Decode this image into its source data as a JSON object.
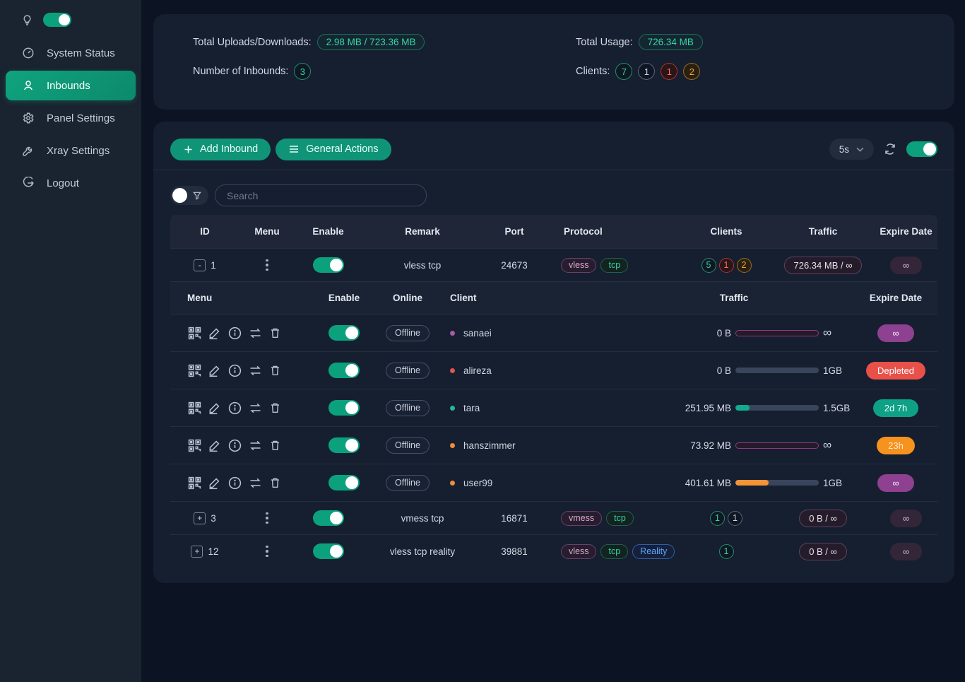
{
  "colors": {
    "accent": "#0ca17d",
    "card": "#161f30",
    "page": "#0c1322",
    "badge_purple": "#8e4190",
    "badge_red": "#e8504a",
    "badge_teal": "#0ea186",
    "badge_orange": "#f6921e"
  },
  "sidebar": {
    "theme_toggle_on": true,
    "items": [
      {
        "label": "System Status",
        "icon": "dashboard-icon",
        "active": false
      },
      {
        "label": "Inbounds",
        "icon": "user-icon",
        "active": true
      },
      {
        "label": "Panel Settings",
        "icon": "gear-icon",
        "active": false
      },
      {
        "label": "Xray Settings",
        "icon": "wrench-icon",
        "active": false
      },
      {
        "label": "Logout",
        "icon": "logout-icon",
        "active": false
      }
    ]
  },
  "stats": {
    "uploads_label": "Total Uploads/Downloads:",
    "uploads_value": "2.98 MB / 723.36 MB",
    "inbounds_label": "Number of Inbounds:",
    "inbounds_value": "3",
    "usage_label": "Total Usage:",
    "usage_value": "726.34 MB",
    "clients_label": "Clients:",
    "client_badges": [
      {
        "value": "7",
        "color": "green"
      },
      {
        "value": "1",
        "color": "gray"
      },
      {
        "value": "1",
        "color": "red"
      },
      {
        "value": "2",
        "color": "orange"
      }
    ]
  },
  "toolbar": {
    "add_inbound_label": "Add Inbound",
    "general_actions_label": "General Actions",
    "refresh_interval": "5s",
    "auto_refresh_on": true
  },
  "filters": {
    "search_placeholder": "Search",
    "toggle_on": false
  },
  "inbounds_table": {
    "headers": {
      "id": "ID",
      "menu": "Menu",
      "enable": "Enable",
      "remark": "Remark",
      "port": "Port",
      "protocol": "Protocol",
      "clients": "Clients",
      "traffic": "Traffic",
      "expire": "Expire Date"
    },
    "rows": [
      {
        "id": "1",
        "expand": "-",
        "enabled": true,
        "remark": "vless tcp",
        "port": "24673",
        "tags": [
          {
            "label": "vless",
            "color": "purple"
          },
          {
            "label": "tcp",
            "color": "green"
          }
        ],
        "client_badges": [
          {
            "value": "5",
            "color": "green"
          },
          {
            "value": "1",
            "color": "red"
          },
          {
            "value": "2",
            "color": "orange"
          }
        ],
        "traffic": "726.34 MB / ∞",
        "expire": "∞"
      },
      {
        "id": "3",
        "expand": "+",
        "enabled": true,
        "remark": "vmess tcp",
        "port": "16871",
        "tags": [
          {
            "label": "vmess",
            "color": "purple"
          },
          {
            "label": "tcp",
            "color": "green"
          }
        ],
        "client_badges": [
          {
            "value": "1",
            "color": "green"
          },
          {
            "value": "1",
            "color": "gray"
          }
        ],
        "traffic": "0 B / ∞",
        "expire": "∞"
      },
      {
        "id": "12",
        "expand": "+",
        "enabled": true,
        "remark": "vless tcp reality",
        "port": "39881",
        "tags": [
          {
            "label": "vless",
            "color": "purple"
          },
          {
            "label": "tcp",
            "color": "green"
          },
          {
            "label": "Reality",
            "color": "blue"
          }
        ],
        "client_badges": [
          {
            "value": "1",
            "color": "green"
          }
        ],
        "traffic": "0 B / ∞",
        "expire": "∞"
      }
    ]
  },
  "clients_table": {
    "headers": {
      "menu": "Menu",
      "enable": "Enable",
      "online": "Online",
      "client": "Client",
      "traffic": "Traffic",
      "expire": "Expire Date"
    },
    "action_icons": [
      "qr-code-icon",
      "edit-icon",
      "info-icon",
      "reset-traffic-icon",
      "delete-icon"
    ],
    "rows": [
      {
        "name": "sanaei",
        "dot_color": "purple",
        "status": "Offline",
        "enabled": true,
        "used": "0 B",
        "limit": "∞",
        "bar_type": "infinite",
        "pct": 0,
        "fill": "",
        "expire": "∞",
        "expire_color": "purple"
      },
      {
        "name": "alireza",
        "dot_color": "red",
        "status": "Offline",
        "enabled": true,
        "used": "0 B",
        "limit": "1GB",
        "bar_type": "normal",
        "pct": 0,
        "fill": "teal",
        "expire": "Depleted",
        "expire_color": "red"
      },
      {
        "name": "tara",
        "dot_color": "teal",
        "status": "Offline",
        "enabled": true,
        "used": "251.95 MB",
        "limit": "1.5GB",
        "bar_type": "normal",
        "pct": 17,
        "fill": "teal",
        "expire": "2d 7h",
        "expire_color": "teal"
      },
      {
        "name": "hanszimmer",
        "dot_color": "orange",
        "status": "Offline",
        "enabled": true,
        "used": "73.92 MB",
        "limit": "∞",
        "bar_type": "infinite",
        "pct": 0,
        "fill": "",
        "expire": "23h",
        "expire_color": "orange"
      },
      {
        "name": "user99",
        "dot_color": "orange",
        "status": "Offline",
        "enabled": true,
        "used": "401.61 MB",
        "limit": "1GB",
        "bar_type": "normal",
        "pct": 40,
        "fill": "orange",
        "expire": "∞",
        "expire_color": "purple"
      }
    ]
  }
}
